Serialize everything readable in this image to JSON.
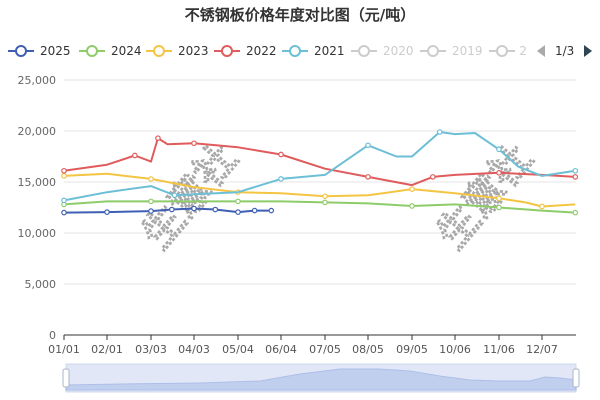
{
  "title": "不锈钢板价格年度对比图（元/吨）",
  "pager": {
    "text": "1/3"
  },
  "watermark": "生意社",
  "legend": [
    {
      "name": "2025",
      "color": "#3f5fb5",
      "enabled": true
    },
    {
      "name": "2024",
      "color": "#8ecc6a",
      "enabled": true
    },
    {
      "name": "2023",
      "color": "#f4c443",
      "enabled": true
    },
    {
      "name": "2022",
      "color": "#e05b5b",
      "enabled": true
    },
    {
      "name": "2021",
      "color": "#6cbfd6",
      "enabled": true
    },
    {
      "name": "2020",
      "color": "#cccccc",
      "enabled": false
    },
    {
      "name": "2019",
      "color": "#cccccc",
      "enabled": false
    },
    {
      "name": "2",
      "color": "#cccccc",
      "enabled": false
    }
  ],
  "chart_data": {
    "type": "line",
    "title": "不锈钢板价格年度对比图（元/吨）",
    "ylim": [
      0,
      25000
    ],
    "y_ticks": [
      "0",
      "5,000",
      "10,000",
      "15,000",
      "20,000",
      "25,000"
    ],
    "x_ticks": [
      "01/01",
      "02/01",
      "03/03",
      "04/03",
      "05/04",
      "06/04",
      "07/05",
      "08/05",
      "09/05",
      "10/06",
      "11/06",
      "12/07"
    ],
    "legend_position": "top",
    "grid": true,
    "series": [
      {
        "name": "2025",
        "color": "#3f5fb5",
        "x": [
          "01/01",
          "02/01",
          "03/03",
          "03/18",
          "04/03",
          "04/18",
          "05/04",
          "05/16",
          "05/28"
        ],
        "values": [
          12000,
          12050,
          12150,
          12300,
          12400,
          12300,
          12050,
          12200,
          12200
        ]
      },
      {
        "name": "2024",
        "color": "#8ecc6a",
        "x": [
          "01/01",
          "02/01",
          "03/03",
          "04/03",
          "05/04",
          "06/04",
          "07/05",
          "08/05",
          "09/05",
          "10/06",
          "11/06",
          "12/07",
          "12/31"
        ],
        "values": [
          12800,
          13100,
          13100,
          13100,
          13100,
          13100,
          13000,
          12900,
          12650,
          12800,
          12500,
          12200,
          12000
        ]
      },
      {
        "name": "2023",
        "color": "#f4c443",
        "x": [
          "01/01",
          "02/01",
          "03/03",
          "04/03",
          "05/04",
          "06/04",
          "07/05",
          "08/05",
          "09/05",
          "10/06",
          "11/06",
          "11/25",
          "12/07",
          "12/31"
        ],
        "values": [
          15600,
          15800,
          15300,
          14500,
          14000,
          13900,
          13600,
          13700,
          14300,
          13900,
          13400,
          13000,
          12600,
          12800
        ]
      },
      {
        "name": "2022",
        "color": "#e05b5b",
        "x": [
          "01/01",
          "02/01",
          "02/20",
          "03/03",
          "03/08",
          "03/15",
          "04/03",
          "05/04",
          "06/04",
          "07/05",
          "08/05",
          "09/05",
          "09/20",
          "10/06",
          "11/06",
          "12/07",
          "12/31"
        ],
        "values": [
          16100,
          16700,
          17600,
          17000,
          19300,
          18700,
          18800,
          18400,
          17700,
          16300,
          15500,
          14700,
          15500,
          15700,
          15900,
          15700,
          15500
        ]
      },
      {
        "name": "2021",
        "color": "#6cbfd6",
        "x": [
          "01/01",
          "02/01",
          "03/03",
          "03/20",
          "04/03",
          "05/04",
          "06/04",
          "07/05",
          "07/20",
          "08/05",
          "08/25",
          "09/05",
          "09/25",
          "10/06",
          "10/20",
          "11/06",
          "11/20",
          "12/07",
          "12/31"
        ],
        "values": [
          13200,
          14000,
          14600,
          13700,
          13800,
          14000,
          15300,
          15700,
          17100,
          18600,
          17500,
          17500,
          19900,
          19700,
          19800,
          18200,
          16500,
          15600,
          16100
        ]
      }
    ]
  }
}
